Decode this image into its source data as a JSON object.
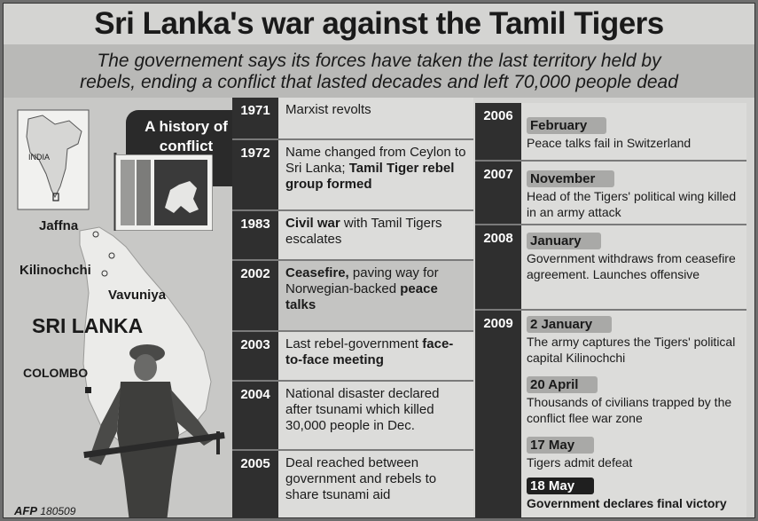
{
  "header": {
    "title": "Sri Lanka's war against the Tamil Tigers",
    "subtitle_line1": "The governement says its forces have taken the last territory held by",
    "subtitle_line2": "rebels, ending a conflict that lasted decades and left 70,000 people dead"
  },
  "map": {
    "inset_label": "INDIA",
    "places": {
      "jaffna": "Jaffna",
      "kilinochchi": "Kilinochchi",
      "vavuniya": "Vavuniya",
      "country": "SRI LANKA",
      "colombo": "COLOMBO"
    }
  },
  "history_title": "A history of conflict",
  "credit": {
    "agency": "AFP",
    "code": "180509"
  },
  "timeline_left": [
    {
      "year": "1971",
      "text": "Marxist revolts",
      "bold": ""
    },
    {
      "year": "1972",
      "text": "Name changed from Ceylon to Sri Lanka;",
      "bold": "Tamil Tiger rebel group formed"
    },
    {
      "year": "1983",
      "bold_first": "Civil war",
      "text": "with Tamil Tigers escalates"
    },
    {
      "year": "2002",
      "bold_first": "Ceasefire,",
      "text": "paving way for Norwegian-backed",
      "bold_last": "peace talks"
    },
    {
      "year": "2003",
      "text": "Last rebel-government",
      "bold": "face-to-face meeting"
    },
    {
      "year": "2004",
      "text": "National disaster declared after tsunami which killed 30,000 people in Dec."
    },
    {
      "year": "2005",
      "text": "Deal reached between government and rebels to share tsunami aid"
    }
  ],
  "timeline_right": [
    {
      "year": "2006",
      "events": [
        {
          "date": "February",
          "desc": "Peace talks fail in Switzerland"
        }
      ]
    },
    {
      "year": "2007",
      "events": [
        {
          "date": "November",
          "desc": "Head of the Tigers' political wing killed in an army attack"
        }
      ]
    },
    {
      "year": "2008",
      "events": [
        {
          "date": "January",
          "desc": "Government withdraws from ceasefire agreement. Launches offensive"
        }
      ]
    },
    {
      "year": "2009",
      "events": [
        {
          "date": "2 January",
          "desc": "The army captures the Tigers' political capital Kilinochchi"
        },
        {
          "date": "20 April",
          "desc": "Thousands of civilians trapped by the conflict flee war zone"
        },
        {
          "date": "17 May",
          "desc": "Tigers admit defeat"
        },
        {
          "date": "18 May",
          "desc": "Government declares final victory"
        }
      ]
    }
  ],
  "colors": {
    "year_bar": "#2f2f2f",
    "pill": "#a9a9a7",
    "background": "#d4d4d2"
  }
}
